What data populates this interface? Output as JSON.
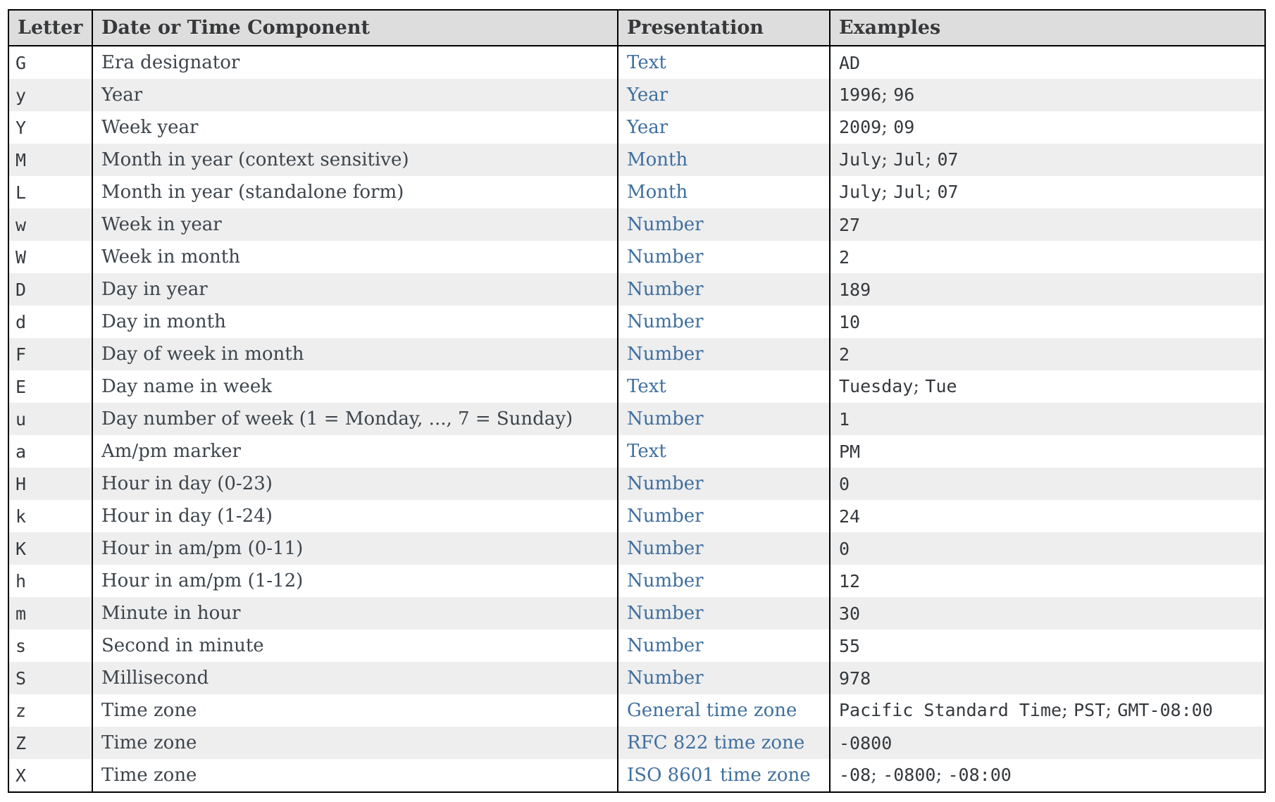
{
  "colors": {
    "page_background": "#ffffff",
    "header_background": "#dddddd",
    "alt_row_background": "#eeeeee",
    "border": "#000000",
    "body_text": "#3d444b",
    "mono_text": "#35393d",
    "link_text": "#3f6f9f"
  },
  "table": {
    "separator": "; ",
    "columns": [
      "Letter",
      "Date or Time Component",
      "Presentation",
      "Examples"
    ],
    "rows": [
      {
        "letter": "G",
        "component": "Era designator",
        "presentation": "Text",
        "examples": [
          "AD"
        ]
      },
      {
        "letter": "y",
        "component": "Year",
        "presentation": "Year",
        "examples": [
          "1996",
          "96"
        ]
      },
      {
        "letter": "Y",
        "component": "Week year",
        "presentation": "Year",
        "examples": [
          "2009",
          "09"
        ]
      },
      {
        "letter": "M",
        "component": "Month in year (context sensitive)",
        "presentation": "Month",
        "examples": [
          "July",
          "Jul",
          "07"
        ]
      },
      {
        "letter": "L",
        "component": "Month in year (standalone form)",
        "presentation": "Month",
        "examples": [
          "July",
          "Jul",
          "07"
        ]
      },
      {
        "letter": "w",
        "component": "Week in year",
        "presentation": "Number",
        "examples": [
          "27"
        ]
      },
      {
        "letter": "W",
        "component": "Week in month",
        "presentation": "Number",
        "examples": [
          "2"
        ]
      },
      {
        "letter": "D",
        "component": "Day in year",
        "presentation": "Number",
        "examples": [
          "189"
        ]
      },
      {
        "letter": "d",
        "component": "Day in month",
        "presentation": "Number",
        "examples": [
          "10"
        ]
      },
      {
        "letter": "F",
        "component": "Day of week in month",
        "presentation": "Number",
        "examples": [
          "2"
        ]
      },
      {
        "letter": "E",
        "component": "Day name in week",
        "presentation": "Text",
        "examples": [
          "Tuesday",
          "Tue"
        ]
      },
      {
        "letter": "u",
        "component": "Day number of week (1 = Monday, ..., 7 = Sunday)",
        "presentation": "Number",
        "examples": [
          "1"
        ]
      },
      {
        "letter": "a",
        "component": "Am/pm marker",
        "presentation": "Text",
        "examples": [
          "PM"
        ]
      },
      {
        "letter": "H",
        "component": "Hour in day (0-23)",
        "presentation": "Number",
        "examples": [
          "0"
        ]
      },
      {
        "letter": "k",
        "component": "Hour in day (1-24)",
        "presentation": "Number",
        "examples": [
          "24"
        ]
      },
      {
        "letter": "K",
        "component": "Hour in am/pm (0-11)",
        "presentation": "Number",
        "examples": [
          "0"
        ]
      },
      {
        "letter": "h",
        "component": "Hour in am/pm (1-12)",
        "presentation": "Number",
        "examples": [
          "12"
        ]
      },
      {
        "letter": "m",
        "component": "Minute in hour",
        "presentation": "Number",
        "examples": [
          "30"
        ]
      },
      {
        "letter": "s",
        "component": "Second in minute",
        "presentation": "Number",
        "examples": [
          "55"
        ]
      },
      {
        "letter": "S",
        "component": "Millisecond",
        "presentation": "Number",
        "examples": [
          "978"
        ]
      },
      {
        "letter": "z",
        "component": "Time zone",
        "presentation": "General time zone",
        "examples": [
          "Pacific Standard Time",
          "PST",
          "GMT-08:00"
        ]
      },
      {
        "letter": "Z",
        "component": "Time zone",
        "presentation": "RFC 822 time zone",
        "examples": [
          "-0800"
        ]
      },
      {
        "letter": "X",
        "component": "Time zone",
        "presentation": "ISO 8601 time zone",
        "examples": [
          "-08",
          "-0800",
          "-08:00"
        ]
      }
    ]
  }
}
